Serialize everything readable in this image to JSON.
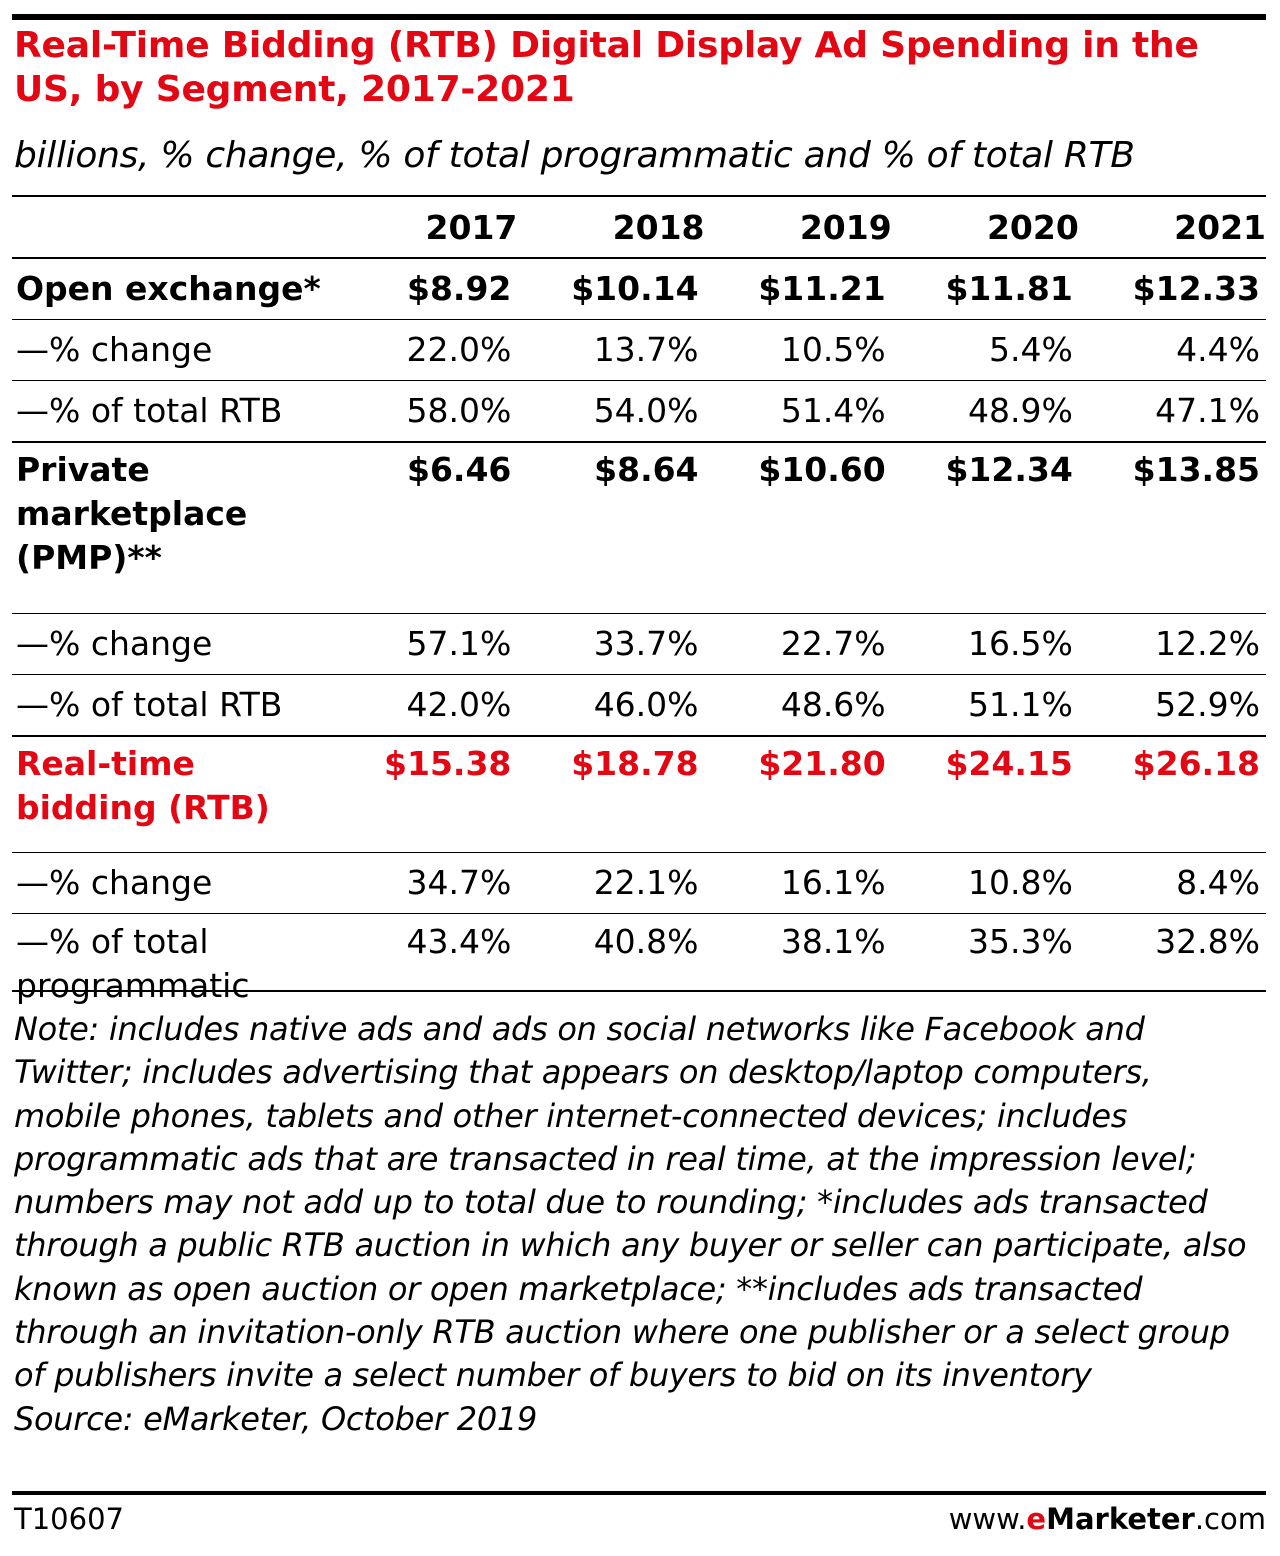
{
  "colors": {
    "accent": "#e30613",
    "text": "#000000",
    "background": "#ffffff"
  },
  "chart_data": {
    "type": "table",
    "title": "Real-Time Bidding (RTB) Digital Display Ad Spending in the US, by Segment, 2017-2021",
    "subtitle": "billions, % change, % of total programmatic and % of total RTB",
    "columns": [
      "2017",
      "2018",
      "2019",
      "2020",
      "2021"
    ],
    "rows": [
      {
        "label": "Open exchange*",
        "values": [
          "$8.92",
          "$10.14",
          "$11.21",
          "$11.81",
          "$12.33"
        ]
      },
      {
        "label": "—% change",
        "values": [
          "22.0%",
          "13.7%",
          "10.5%",
          "5.4%",
          "4.4%"
        ]
      },
      {
        "label": "—% of total RTB",
        "values": [
          "58.0%",
          "54.0%",
          "51.4%",
          "48.9%",
          "47.1%"
        ]
      },
      {
        "label": "Private marketplace (PMP)**",
        "values": [
          "$6.46",
          "$8.64",
          "$10.60",
          "$12.34",
          "$13.85"
        ]
      },
      {
        "label": "—% change",
        "values": [
          "57.1%",
          "33.7%",
          "22.7%",
          "16.5%",
          "12.2%"
        ]
      },
      {
        "label": "—% of total RTB",
        "values": [
          "42.0%",
          "46.0%",
          "48.6%",
          "51.1%",
          "52.9%"
        ]
      },
      {
        "label": "Real-time bidding (RTB)",
        "values": [
          "$15.38",
          "$18.78",
          "$21.80",
          "$24.15",
          "$26.18"
        ]
      },
      {
        "label": "—% change",
        "values": [
          "34.7%",
          "22.1%",
          "16.1%",
          "10.8%",
          "8.4%"
        ]
      },
      {
        "label": "—% of total programmatic",
        "values": [
          "43.4%",
          "40.8%",
          "38.1%",
          "35.3%",
          "32.8%"
        ]
      }
    ],
    "note": "Note: includes native ads and ads on social networks like Facebook and Twitter; includes advertising that appears on desktop/laptop computers, mobile phones, tablets and other internet-connected devices; includes programmatic ads that are transacted in real time, at the impression level; numbers may not add up to total due to rounding; *includes ads transacted through a public RTB auction in which any buyer or seller can participate, also known as open auction or open marketplace; **includes ads transacted through an invitation-only RTB auction where one publisher or a select group of publishers invite a select number of buyers to bid on its inventory",
    "source": "Source: eMarketer, October 2019"
  },
  "footer": {
    "chart_id": "T10607",
    "brand_prefix": "www.",
    "brand_name": "eMarketer",
    "brand_suffix": ".com"
  }
}
